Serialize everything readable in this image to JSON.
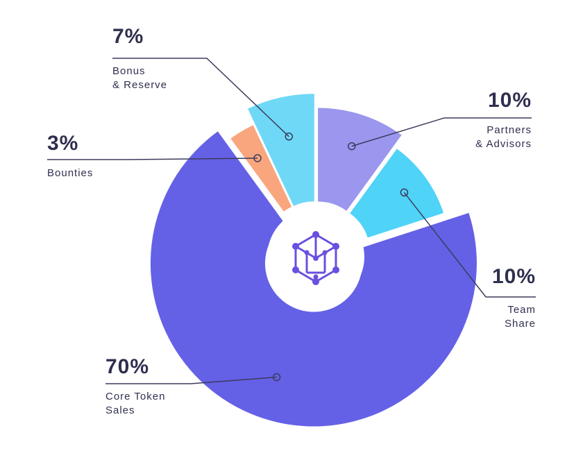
{
  "chart_data": {
    "type": "pie",
    "categories": [
      "Partners\n& Advisors",
      "Team\nShare",
      "Core Token\nSales",
      "Bounties",
      "Bonus\n& Reserve"
    ],
    "values": [
      10,
      10,
      70,
      3,
      7
    ],
    "value_labels": [
      "10%",
      "10%",
      "70%",
      "3%",
      "7%"
    ],
    "colors": [
      "#9b97ee",
      "#4fd3f7",
      "#6461e6",
      "#f9a67e",
      "#6fd8f7"
    ]
  }
}
